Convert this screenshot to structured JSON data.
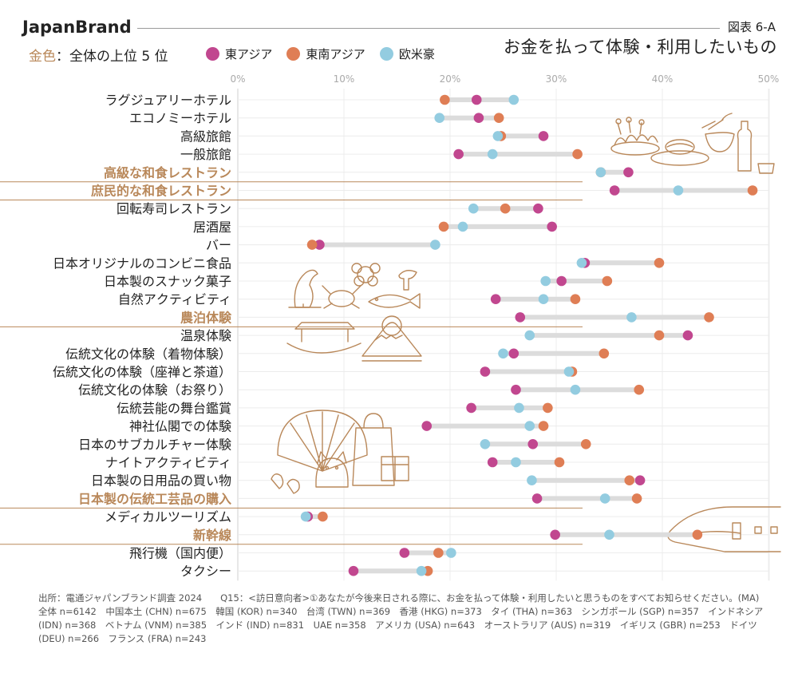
{
  "header": {
    "brand": "JapanBrand",
    "figure_id": "図表 6-A",
    "title": "お金を払って体験・利用したいもの",
    "gold_note_prefix": "金色",
    "gold_note_text": "：全体の上位 5 位"
  },
  "colors": {
    "east_asia": "#c1478f",
    "southeast_asia": "#df7e55",
    "western": "#93cce0",
    "gold": "#b9885a",
    "connector": "#dcdcdc",
    "grid": "#ececec"
  },
  "chart_data": {
    "type": "dot-range",
    "title": "お金を払って体験・利用したいもの",
    "x_ticks": [
      "0%",
      "10%",
      "20%",
      "30%",
      "40%",
      "50%"
    ],
    "xlim": [
      0,
      50
    ],
    "unit": "%",
    "series": [
      {
        "key": "ea",
        "name": "東アジア"
      },
      {
        "key": "sea",
        "name": "東南アジア"
      },
      {
        "key": "we",
        "name": "欧米豪"
      }
    ],
    "highlight_note": "金色：全体の上位 5 位",
    "items": [
      {
        "label": "ラグジュアリーホテル",
        "ea": 22.5,
        "sea": 19.5,
        "we": 26.0,
        "top5": false
      },
      {
        "label": "エコノミーホテル",
        "ea": 22.7,
        "sea": 24.6,
        "we": 19.0,
        "top5": false
      },
      {
        "label": "高級旅館",
        "ea": 28.8,
        "sea": 24.8,
        "we": 24.5,
        "top5": false
      },
      {
        "label": "一般旅館",
        "ea": 20.8,
        "sea": 32.0,
        "we": 24.0,
        "top5": false
      },
      {
        "label": "高級な和食レストラン",
        "ea": 36.8,
        "sea": 34.2,
        "we": 34.2,
        "top5": true
      },
      {
        "label": "庶民的な和食レストラン",
        "ea": 35.5,
        "sea": 48.5,
        "we": 41.5,
        "top5": true
      },
      {
        "label": "回転寿司レストラン",
        "ea": 28.3,
        "sea": 25.2,
        "we": 22.2,
        "top5": false
      },
      {
        "label": "居酒屋",
        "ea": 29.6,
        "sea": 19.4,
        "we": 21.2,
        "top5": false
      },
      {
        "label": "バー",
        "ea": 7.7,
        "sea": 7.0,
        "we": 18.6,
        "top5": false
      },
      {
        "label": "日本オリジナルのコンビニ食品",
        "ea": 32.7,
        "sea": 39.7,
        "we": 32.4,
        "top5": false
      },
      {
        "label": "日本製のスナック菓子",
        "ea": 30.5,
        "sea": 34.8,
        "we": 29.0,
        "top5": false
      },
      {
        "label": "自然アクティビティ",
        "ea": 24.3,
        "sea": 31.8,
        "we": 28.8,
        "top5": false
      },
      {
        "label": "農泊体験",
        "ea": 26.6,
        "sea": 44.4,
        "we": 37.1,
        "top5": true
      },
      {
        "label": "温泉体験",
        "ea": 42.4,
        "sea": 39.7,
        "we": 27.5,
        "top5": false
      },
      {
        "label": "伝統文化の体験（着物体験）",
        "ea": 26.0,
        "sea": 34.5,
        "we": 25.0,
        "top5": false
      },
      {
        "label": "伝統文化の体験（座禅と茶道）",
        "ea": 23.3,
        "sea": 31.5,
        "we": 31.2,
        "top5": false
      },
      {
        "label": "伝統文化の体験（お祭り）",
        "ea": 26.2,
        "sea": 37.8,
        "we": 31.8,
        "top5": false
      },
      {
        "label": "伝統芸能の舞台鑑賞",
        "ea": 22.0,
        "sea": 29.2,
        "we": 26.5,
        "top5": false
      },
      {
        "label": "神社仏閣での体験",
        "ea": 17.8,
        "sea": 28.8,
        "we": 27.5,
        "top5": false
      },
      {
        "label": "日本のサブカルチャー体験",
        "ea": 27.8,
        "sea": 32.8,
        "we": 23.3,
        "top5": false
      },
      {
        "label": "ナイトアクティビティ",
        "ea": 24.0,
        "sea": 30.3,
        "we": 26.2,
        "top5": false
      },
      {
        "label": "日本製の日用品の買い物",
        "ea": 37.9,
        "sea": 36.9,
        "we": 27.7,
        "top5": false
      },
      {
        "label": "日本製の伝統工芸品の購入",
        "ea": 28.2,
        "sea": 37.6,
        "we": 34.6,
        "top5": true
      },
      {
        "label": "メディカルツーリズム",
        "ea": 6.6,
        "sea": 8.0,
        "we": 6.4,
        "top5": false
      },
      {
        "label": "新幹線",
        "ea": 29.9,
        "sea": 43.3,
        "we": 35.0,
        "top5": true
      },
      {
        "label": "飛行機（国内便）",
        "ea": 15.7,
        "sea": 18.9,
        "we": 20.1,
        "top5": false
      },
      {
        "label": "タクシー",
        "ea": 10.9,
        "sea": 17.9,
        "we": 17.3,
        "top5": false
      }
    ]
  },
  "footer": {
    "text": "出所：電通ジャパンブランド調査 2024　　Q15：<訪日意向者>①あなたが今後来日される際に、お金を払って体験・利用したいと思うものをすべてお知らせください。(MA)　　全体 n=6142　中国本土 (CHN) n=675　韓国 (KOR) n=340　台湾 (TWN) n=369　香港 (HKG) n=373　タイ (THA) n=363　シンガポール (SGP) n=357　インドネシア (IDN) n=368　ベトナム (VNM) n=385　インド (IND) n=831　UAE n=358　アメリカ (USA) n=643　オーストラリア (AUS) n=319　イギリス (GBR) n=253　ドイツ (DEU) n=266　フランス (FRA) n=243"
  },
  "illustrations": [
    "food-illustration",
    "nature-illustration",
    "shrine-shopping-illustration",
    "shinkansen-illustration"
  ]
}
